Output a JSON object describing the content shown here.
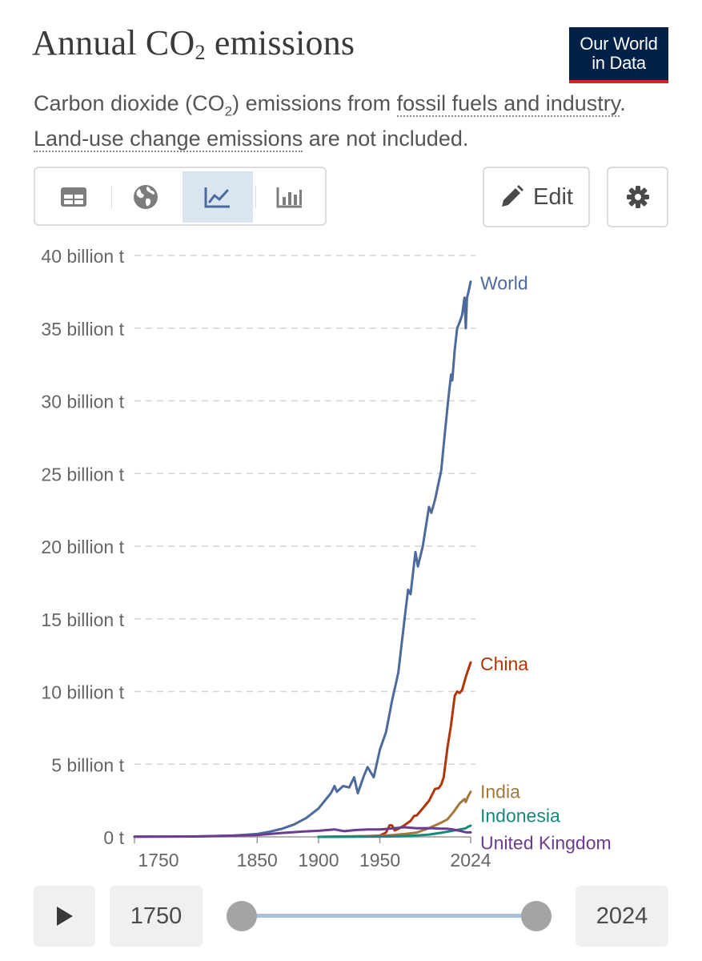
{
  "header": {
    "title_main": "Annual CO",
    "title_sub": "2",
    "title_rest": " emissions",
    "subtitle_part1": "Carbon dioxide (CO",
    "subtitle_sub": "2",
    "subtitle_part2": ") emissions from ",
    "subtitle_link1": "fossil fuels and industry",
    "subtitle_part3": ".",
    "subtitle_link2": "Land-use change emissions",
    "subtitle_part4": " are not included."
  },
  "logo": {
    "line1": "Our World",
    "line2": "in Data",
    "bg": "#002147",
    "stripe": "#ce261e"
  },
  "toolbar": {
    "views": [
      {
        "icon": "table-icon",
        "active": false
      },
      {
        "icon": "globe-icon",
        "active": false
      },
      {
        "icon": "line-chart-icon",
        "active": true
      },
      {
        "icon": "bar-chart-icon",
        "active": false
      }
    ],
    "edit_label": "Edit",
    "settings_icon": "gear-icon"
  },
  "timeline": {
    "start_year": "1750",
    "end_year": "2024",
    "play_icon": "play-icon"
  },
  "chart_data": {
    "type": "line",
    "title": "Annual CO₂ emissions",
    "xlim": [
      1750,
      2024
    ],
    "ylim": [
      0,
      40
    ],
    "xticks": [
      {
        "value": 1750,
        "label": "1750"
      },
      {
        "value": 1850,
        "label": "1850"
      },
      {
        "value": 1900,
        "label": "1900"
      },
      {
        "value": 1950,
        "label": "1950"
      },
      {
        "value": 2024,
        "label": "2024"
      }
    ],
    "yticks": [
      {
        "value": 0,
        "label": "0 t"
      },
      {
        "value": 5,
        "label": "5 billion t"
      },
      {
        "value": 10,
        "label": "10 billion t"
      },
      {
        "value": 15,
        "label": "15 billion t"
      },
      {
        "value": 20,
        "label": "20 billion t"
      },
      {
        "value": 25,
        "label": "25 billion t"
      },
      {
        "value": 30,
        "label": "30 billion t"
      },
      {
        "value": 35,
        "label": "35 billion t"
      },
      {
        "value": 40,
        "label": "40 billion t"
      }
    ],
    "grid": "horizontal-dashed",
    "series": [
      {
        "name": "World",
        "color": "#4c6a9c",
        "label_y": 38.2,
        "points": [
          [
            1750,
            0.01
          ],
          [
            1800,
            0.03
          ],
          [
            1830,
            0.08
          ],
          [
            1850,
            0.2
          ],
          [
            1860,
            0.35
          ],
          [
            1870,
            0.55
          ],
          [
            1880,
            0.85
          ],
          [
            1890,
            1.3
          ],
          [
            1900,
            1.95
          ],
          [
            1910,
            3.0
          ],
          [
            1913,
            3.5
          ],
          [
            1915,
            3.1
          ],
          [
            1920,
            3.5
          ],
          [
            1925,
            3.4
          ],
          [
            1929,
            4.1
          ],
          [
            1932,
            3.0
          ],
          [
            1937,
            4.2
          ],
          [
            1940,
            4.8
          ],
          [
            1945,
            4.1
          ],
          [
            1950,
            6.0
          ],
          [
            1955,
            7.2
          ],
          [
            1960,
            9.4
          ],
          [
            1965,
            11.3
          ],
          [
            1970,
            14.9
          ],
          [
            1973,
            17.0
          ],
          [
            1975,
            16.7
          ],
          [
            1979,
            19.6
          ],
          [
            1981,
            18.6
          ],
          [
            1985,
            20.0
          ],
          [
            1990,
            22.7
          ],
          [
            1992,
            22.3
          ],
          [
            1995,
            23.2
          ],
          [
            2000,
            25.2
          ],
          [
            2003,
            27.8
          ],
          [
            2006,
            30.3
          ],
          [
            2008,
            31.8
          ],
          [
            2009,
            31.4
          ],
          [
            2011,
            33.5
          ],
          [
            2013,
            35.0
          ],
          [
            2015,
            35.4
          ],
          [
            2017,
            35.9
          ],
          [
            2019,
            37.1
          ],
          [
            2020,
            35.0
          ],
          [
            2021,
            37.1
          ],
          [
            2022,
            37.4
          ],
          [
            2024,
            38.2
          ]
        ]
      },
      {
        "name": "China",
        "color": "#b13507",
        "label_y": 12.0,
        "points": [
          [
            1900,
            0.0
          ],
          [
            1930,
            0.03
          ],
          [
            1950,
            0.08
          ],
          [
            1955,
            0.3
          ],
          [
            1958,
            0.8
          ],
          [
            1960,
            0.78
          ],
          [
            1962,
            0.44
          ],
          [
            1965,
            0.55
          ],
          [
            1970,
            0.8
          ],
          [
            1975,
            1.1
          ],
          [
            1978,
            1.45
          ],
          [
            1980,
            1.47
          ],
          [
            1985,
            1.96
          ],
          [
            1990,
            2.48
          ],
          [
            1995,
            3.3
          ],
          [
            1998,
            3.35
          ],
          [
            2000,
            3.6
          ],
          [
            2002,
            4.1
          ],
          [
            2005,
            6.1
          ],
          [
            2008,
            7.7
          ],
          [
            2011,
            9.7
          ],
          [
            2013,
            10.0
          ],
          [
            2015,
            9.9
          ],
          [
            2017,
            10.1
          ],
          [
            2020,
            11.0
          ],
          [
            2022,
            11.5
          ],
          [
            2024,
            12.0
          ]
        ]
      },
      {
        "name": "India",
        "color": "#a2783b",
        "label_y": 3.1,
        "points": [
          [
            1900,
            0.0
          ],
          [
            1950,
            0.07
          ],
          [
            1960,
            0.12
          ],
          [
            1970,
            0.2
          ],
          [
            1980,
            0.3
          ],
          [
            1990,
            0.6
          ],
          [
            2000,
            0.98
          ],
          [
            2005,
            1.2
          ],
          [
            2010,
            1.7
          ],
          [
            2015,
            2.3
          ],
          [
            2019,
            2.6
          ],
          [
            2020,
            2.4
          ],
          [
            2022,
            2.8
          ],
          [
            2024,
            3.1
          ]
        ]
      },
      {
        "name": "Indonesia",
        "color": "#16897d",
        "label_y": 0.77,
        "points": [
          [
            1900,
            0.0
          ],
          [
            1950,
            0.02
          ],
          [
            1970,
            0.05
          ],
          [
            1980,
            0.1
          ],
          [
            1990,
            0.16
          ],
          [
            2000,
            0.28
          ],
          [
            2010,
            0.43
          ],
          [
            2020,
            0.59
          ],
          [
            2022,
            0.7
          ],
          [
            2024,
            0.77
          ]
        ]
      },
      {
        "name": "United Kingdom",
        "color": "#6b3d8f",
        "label_y": 0.31,
        "points": [
          [
            1750,
            0.01
          ],
          [
            1800,
            0.03
          ],
          [
            1850,
            0.12
          ],
          [
            1870,
            0.27
          ],
          [
            1890,
            0.38
          ],
          [
            1900,
            0.42
          ],
          [
            1913,
            0.51
          ],
          [
            1921,
            0.39
          ],
          [
            1930,
            0.47
          ],
          [
            1940,
            0.51
          ],
          [
            1950,
            0.51
          ],
          [
            1960,
            0.58
          ],
          [
            1970,
            0.66
          ],
          [
            1980,
            0.59
          ],
          [
            1990,
            0.6
          ],
          [
            2000,
            0.56
          ],
          [
            2005,
            0.56
          ],
          [
            2010,
            0.5
          ],
          [
            2015,
            0.42
          ],
          [
            2020,
            0.32
          ],
          [
            2024,
            0.31
          ]
        ]
      }
    ]
  }
}
